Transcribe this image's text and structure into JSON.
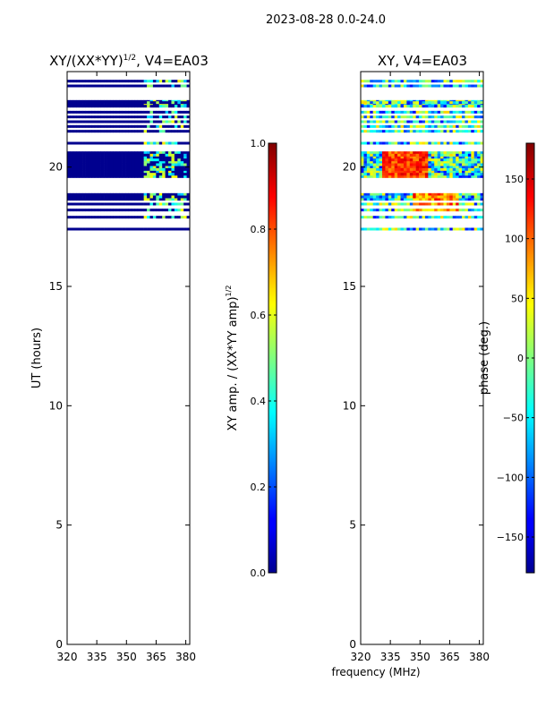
{
  "figure": {
    "suptitle": "2023-08-28 0.0-24.0",
    "shared_xlabel": "frequency (MHz)"
  },
  "colors": {
    "background": "#ffffff",
    "axis": "#000000",
    "amp_fill": "#00008f",
    "colormap": "jet"
  },
  "chart_data": [
    {
      "type": "heatmap",
      "title_main": "XY/(XX*YY)",
      "title_sup": "1/2",
      "title_rest": ", V4=EA03",
      "xlabel": "frequency (MHz)",
      "ylabel": "UT (hours)",
      "xlim": [
        320,
        382
      ],
      "ylim": [
        0,
        24
      ],
      "xticks": [
        "320",
        "335",
        "350",
        "365",
        "380"
      ],
      "yticks": [
        "0",
        "5",
        "10",
        "15",
        "20"
      ],
      "ytick_values": [
        0,
        5,
        10,
        15,
        20
      ],
      "data_rows_ut_hours": [
        17.4,
        17.9,
        18.2,
        18.45,
        18.65,
        18.85,
        19.6,
        19.8,
        20.0,
        20.2,
        20.4,
        20.6,
        21.0,
        21.5,
        21.7,
        21.9,
        22.1,
        22.3,
        22.6,
        22.75,
        23.4,
        23.6
      ],
      "colorbar": {
        "label_main": "XY amp. / (XX*YY amp)",
        "label_sup": "1/2",
        "range": [
          0.0,
          1.0
        ],
        "ticks": [
          "0.0",
          "0.2",
          "0.4",
          "0.6",
          "0.8",
          "1.0"
        ],
        "tick_values": [
          0.0,
          0.2,
          0.4,
          0.6,
          0.8,
          1.0
        ]
      }
    },
    {
      "type": "heatmap",
      "title": "XY, V4=EA03",
      "xlabel": "frequency (MHz)",
      "ylabel": "",
      "xlim": [
        320,
        382
      ],
      "ylim": [
        0,
        24
      ],
      "xticks": [
        "320",
        "335",
        "350",
        "365",
        "380"
      ],
      "yticks": [
        "0",
        "5",
        "10",
        "15",
        "20"
      ],
      "ytick_values": [
        0,
        5,
        10,
        15,
        20
      ],
      "colorbar": {
        "label": "phase (deg.)",
        "range": [
          -180,
          180
        ],
        "ticks": [
          "−150",
          "−100",
          "−50",
          "0",
          "50",
          "100",
          "150"
        ],
        "tick_values": [
          -150,
          -100,
          -50,
          0,
          50,
          100,
          150
        ]
      }
    }
  ]
}
